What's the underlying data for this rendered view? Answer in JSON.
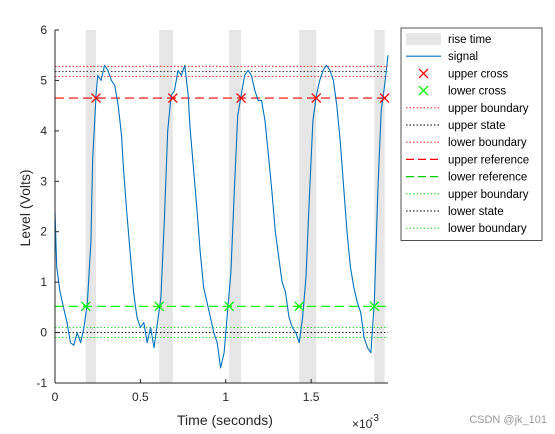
{
  "chart_data": {
    "type": "line",
    "xlabel": "Time (seconds)",
    "ylabel": "Level (Volts)",
    "x_exponent_label": "×10",
    "x_exponent_power": "-3",
    "xlim": [
      0,
      1.95
    ],
    "ylim": [
      -1,
      6
    ],
    "x_ticks": [
      0,
      0.5,
      1,
      1.5
    ],
    "x_tick_labels": [
      "0",
      "0.5",
      "1",
      "1.5"
    ],
    "y_ticks": [
      -1,
      0,
      1,
      2,
      3,
      4,
      5,
      6
    ],
    "y_tick_labels": [
      "-1",
      "0",
      "1",
      "2",
      "3",
      "4",
      "5",
      "6"
    ],
    "grid": false,
    "legend_position": "outside-right",
    "rise_time_spans": [
      [
        0.18,
        0.24
      ],
      [
        0.61,
        0.69
      ],
      [
        1.02,
        1.09
      ],
      [
        1.43,
        1.53
      ],
      [
        1.87,
        1.93
      ]
    ],
    "upper_cross": {
      "x": [
        0.24,
        0.69,
        1.09,
        1.53,
        1.93
      ],
      "y": [
        4.65,
        4.65,
        4.65,
        4.65,
        4.65
      ]
    },
    "lower_cross": {
      "x": [
        0.18,
        0.61,
        1.02,
        1.43,
        1.87
      ],
      "y": [
        0.52,
        0.52,
        0.52,
        0.52,
        0.52
      ]
    },
    "reference_lines": {
      "upper_reference": 4.65,
      "lower_reference": 0.52,
      "upper_state": 5.18,
      "upper_boundary": 5.28,
      "upper_lower_boundary": 5.08,
      "lower_state": 0.0,
      "lower_upper_boundary": 0.1,
      "lower_lower_boundary": -0.1
    },
    "signal": {
      "name": "signal",
      "x": [
        0,
        0.01,
        0.03,
        0.05,
        0.07,
        0.09,
        0.11,
        0.13,
        0.15,
        0.17,
        0.19,
        0.21,
        0.22,
        0.24,
        0.25,
        0.27,
        0.29,
        0.31,
        0.33,
        0.35,
        0.37,
        0.39,
        0.4,
        0.42,
        0.44,
        0.46,
        0.48,
        0.5,
        0.52,
        0.54,
        0.56,
        0.58,
        0.6,
        0.62,
        0.64,
        0.66,
        0.68,
        0.7,
        0.72,
        0.74,
        0.76,
        0.78,
        0.79,
        0.81,
        0.83,
        0.85,
        0.87,
        0.89,
        0.91,
        0.93,
        0.95,
        0.97,
        0.99,
        1.01,
        1.03,
        1.05,
        1.07,
        1.09,
        1.11,
        1.13,
        1.15,
        1.17,
        1.19,
        1.21,
        1.23,
        1.25,
        1.27,
        1.29,
        1.31,
        1.33,
        1.35,
        1.37,
        1.39,
        1.41,
        1.43,
        1.45,
        1.47,
        1.49,
        1.51,
        1.53,
        1.55,
        1.57,
        1.59,
        1.61,
        1.63,
        1.65,
        1.67,
        1.69,
        1.71,
        1.73,
        1.75,
        1.77,
        1.79,
        1.81,
        1.83,
        1.85,
        1.87,
        1.89,
        1.91,
        1.93,
        1.95
      ],
      "y": [
        2.4,
        1.3,
        0.8,
        0.5,
        0.2,
        -0.2,
        -0.25,
        0.0,
        -0.2,
        0.1,
        0.6,
        1.8,
        3.4,
        4.7,
        5.1,
        5.0,
        5.3,
        5.2,
        5.0,
        4.9,
        4.5,
        3.9,
        3.3,
        2.4,
        1.6,
        0.8,
        0.3,
        0.1,
        0.2,
        -0.2,
        0.1,
        -0.3,
        0.2,
        0.7,
        2.2,
        4.0,
        4.7,
        4.8,
        5.2,
        5.1,
        5.3,
        4.7,
        4.1,
        3.3,
        2.5,
        1.6,
        0.9,
        0.6,
        0.3,
        0.0,
        -0.2,
        -0.7,
        -0.4,
        0.4,
        1.2,
        2.8,
        4.3,
        4.7,
        5.1,
        5.2,
        5.1,
        4.8,
        4.6,
        4.6,
        4.2,
        3.5,
        2.8,
        2.0,
        1.5,
        1.0,
        0.8,
        0.3,
        0.1,
        0.0,
        -0.2,
        0.3,
        1.1,
        2.7,
        4.2,
        4.7,
        5.0,
        5.2,
        5.3,
        5.2,
        5.0,
        4.5,
        3.8,
        2.9,
        2.0,
        1.3,
        0.9,
        0.6,
        0.4,
        -0.1,
        -0.3,
        -0.4,
        0.6,
        2.8,
        4.4,
        4.9,
        5.5
      ]
    },
    "legend": [
      {
        "label": "rise time",
        "kind": "patch"
      },
      {
        "label": "signal",
        "kind": "solid",
        "color": "#0072BD"
      },
      {
        "label": "upper cross",
        "kind": "marker",
        "color": "#FF0000"
      },
      {
        "label": "lower cross",
        "kind": "marker",
        "color": "#00FF00"
      },
      {
        "label": "upper boundary",
        "kind": "dotted",
        "color": "#FF0000"
      },
      {
        "label": "upper state",
        "kind": "dotted",
        "color": "#000000"
      },
      {
        "label": "lower boundary",
        "kind": "dotted",
        "color": "#FF0000"
      },
      {
        "label": "upper reference",
        "kind": "dashed",
        "color": "#FF0000"
      },
      {
        "label": "lower reference",
        "kind": "dashed",
        "color": "#00CC00"
      },
      {
        "label": "upper boundary",
        "kind": "dotted",
        "color": "#00CC00"
      },
      {
        "label": "lower state",
        "kind": "dotted",
        "color": "#000000"
      },
      {
        "label": "lower boundary",
        "kind": "dotted",
        "color": "#00CC00"
      }
    ],
    "colors": {
      "signal": "#0072BD",
      "rise_fill": "#E6E6E6",
      "upper_ref": "#FF0000",
      "lower_ref": "#00FF00",
      "axis": "#262626"
    }
  },
  "watermark": "CSDN @jk_101"
}
